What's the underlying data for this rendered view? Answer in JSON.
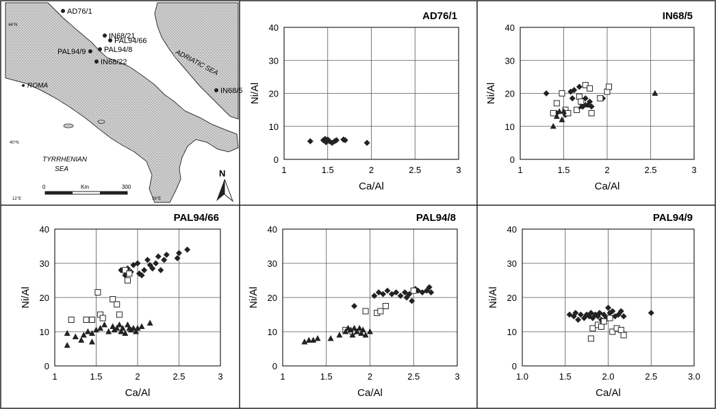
{
  "map": {
    "sites": [
      {
        "label": "AD76/1",
        "x": 92,
        "y": 16
      },
      {
        "label": "IN68/21",
        "x": 153,
        "y": 52
      },
      {
        "label": "PAL94/66",
        "x": 161,
        "y": 59
      },
      {
        "label": "PAL94/9",
        "x": 132,
        "y": 75
      },
      {
        "label": "PAL94/8",
        "x": 146,
        "y": 72
      },
      {
        "label": "IN68/22",
        "x": 141,
        "y": 90
      },
      {
        "label": "IN68/5",
        "x": 316,
        "y": 132
      }
    ],
    "texts": {
      "roma": "ROMA",
      "adriatic": "ADRIATIC SEA",
      "tyrrhenian_1": "TYRRHENIAN",
      "tyrrhenian_2": "SEA",
      "scale_zero": "0",
      "scale_unit": "Km",
      "scale_max": "300",
      "north": "N",
      "lat_top": "44°N",
      "lat_mid": "40°N",
      "lon_left": "12°E",
      "lon_right": "16°E"
    }
  },
  "chart_data": [
    {
      "id": "AD76/1",
      "title": "AD76/1",
      "type": "scatter",
      "xlabel": "Ca/Al",
      "ylabel": "Ni/Al",
      "xlim": [
        1,
        3
      ],
      "ylim": [
        0,
        40
      ],
      "xticks": [
        "1",
        "1.5",
        "2",
        "2.5",
        "3"
      ],
      "yticks": [
        "0",
        "10",
        "20",
        "30",
        "40"
      ],
      "grid": true,
      "series": [
        {
          "marker": "diamond",
          "points": [
            [
              1.3,
              5.5
            ],
            [
              1.45,
              5.8
            ],
            [
              1.47,
              6.2
            ],
            [
              1.48,
              5.2
            ],
            [
              1.5,
              6
            ],
            [
              1.52,
              5.5
            ],
            [
              1.55,
              5
            ],
            [
              1.58,
              5.5
            ],
            [
              1.6,
              5.8
            ],
            [
              1.68,
              6
            ],
            [
              1.7,
              5.8
            ],
            [
              1.95,
              5
            ]
          ]
        }
      ]
    },
    {
      "id": "IN68/5",
      "title": "IN68/5",
      "type": "scatter",
      "xlabel": "Ca/Al",
      "ylabel": "Ni/Al",
      "xlim": [
        1,
        3
      ],
      "ylim": [
        0,
        40
      ],
      "xticks": [
        "1",
        "1.5",
        "2",
        "2.5",
        "3"
      ],
      "yticks": [
        "0",
        "10",
        "20",
        "30",
        "40"
      ],
      "grid": true,
      "series": [
        {
          "marker": "diamond",
          "points": [
            [
              1.3,
              20
            ],
            [
              1.42,
              14
            ],
            [
              1.48,
              20
            ],
            [
              1.52,
              13.5
            ],
            [
              1.58,
              20.5
            ],
            [
              1.6,
              18.5
            ],
            [
              1.62,
              21
            ],
            [
              1.68,
              22
            ],
            [
              1.72,
              16
            ],
            [
              1.75,
              18.5
            ],
            [
              1.78,
              16.5
            ],
            [
              1.8,
              17.5
            ],
            [
              1.82,
              16
            ],
            [
              1.95,
              18.5
            ]
          ]
        },
        {
          "marker": "square",
          "points": [
            [
              1.38,
              14
            ],
            [
              1.42,
              17
            ],
            [
              1.48,
              20
            ],
            [
              1.52,
              15
            ],
            [
              1.55,
              14
            ],
            [
              1.65,
              15
            ],
            [
              1.68,
              19
            ],
            [
              1.7,
              17.5
            ],
            [
              1.75,
              22.5
            ],
            [
              1.8,
              21.5
            ],
            [
              1.82,
              14
            ],
            [
              1.92,
              18.5
            ],
            [
              2.0,
              20.5
            ],
            [
              2.02,
              22
            ]
          ]
        },
        {
          "marker": "triangle",
          "points": [
            [
              1.38,
              10
            ],
            [
              1.42,
              13
            ],
            [
              1.45,
              14.5
            ],
            [
              1.48,
              12
            ],
            [
              1.5,
              14.5
            ],
            [
              1.7,
              16
            ],
            [
              1.75,
              16.5
            ],
            [
              2.55,
              20
            ]
          ]
        }
      ]
    },
    {
      "id": "PAL94/66",
      "title": "PAL94/66",
      "type": "scatter",
      "xlabel": "Ca/Al",
      "ylabel": "Ni/Al",
      "xlim": [
        1,
        3
      ],
      "ylim": [
        0,
        40
      ],
      "xticks": [
        "1",
        "1.5",
        "2",
        "2.5",
        "3"
      ],
      "yticks": [
        "0",
        "10",
        "20",
        "30",
        "40"
      ],
      "grid": true,
      "series": [
        {
          "marker": "diamond",
          "points": [
            [
              1.8,
              28
            ],
            [
              1.85,
              26.5
            ],
            [
              1.88,
              28.5
            ],
            [
              1.92,
              27.5
            ],
            [
              1.95,
              29.5
            ],
            [
              2.0,
              30
            ],
            [
              2.02,
              27
            ],
            [
              2.05,
              26.5
            ],
            [
              2.08,
              28
            ],
            [
              2.12,
              31
            ],
            [
              2.15,
              29.5
            ],
            [
              2.18,
              28.5
            ],
            [
              2.22,
              30
            ],
            [
              2.25,
              32
            ],
            [
              2.28,
              28
            ],
            [
              2.32,
              31
            ],
            [
              2.35,
              32.5
            ],
            [
              2.48,
              31.5
            ],
            [
              2.5,
              33
            ],
            [
              2.6,
              34
            ]
          ]
        },
        {
          "marker": "square",
          "points": [
            [
              1.2,
              13.5
            ],
            [
              1.38,
              13.5
            ],
            [
              1.45,
              13.5
            ],
            [
              1.52,
              21.5
            ],
            [
              1.55,
              15
            ],
            [
              1.58,
              14
            ],
            [
              1.7,
              19.5
            ],
            [
              1.75,
              18
            ],
            [
              1.78,
              15
            ],
            [
              1.85,
              28
            ],
            [
              1.88,
              25
            ],
            [
              1.9,
              27
            ]
          ]
        },
        {
          "marker": "triangle",
          "points": [
            [
              1.15,
              6
            ],
            [
              1.15,
              9.5
            ],
            [
              1.25,
              8.5
            ],
            [
              1.32,
              7.5
            ],
            [
              1.35,
              9
            ],
            [
              1.4,
              10
            ],
            [
              1.45,
              7
            ],
            [
              1.45,
              9.5
            ],
            [
              1.5,
              10.5
            ],
            [
              1.55,
              11
            ],
            [
              1.6,
              12
            ],
            [
              1.65,
              10
            ],
            [
              1.7,
              11.5
            ],
            [
              1.72,
              10.5
            ],
            [
              1.75,
              11
            ],
            [
              1.78,
              12
            ],
            [
              1.8,
              10
            ],
            [
              1.82,
              11
            ],
            [
              1.85,
              9.5
            ],
            [
              1.88,
              12
            ],
            [
              1.9,
              11
            ],
            [
              1.92,
              10.5
            ],
            [
              1.95,
              11
            ],
            [
              1.98,
              10
            ],
            [
              2.0,
              11
            ],
            [
              2.05,
              11.5
            ],
            [
              2.15,
              12.5
            ]
          ]
        }
      ]
    },
    {
      "id": "PAL94/8",
      "title": "PAL94/8",
      "type": "scatter",
      "xlabel": "Ca/Al",
      "ylabel": "Ni/Al",
      "xlim": [
        1,
        3
      ],
      "ylim": [
        0,
        40
      ],
      "xticks": [
        "1",
        "1.5",
        "2",
        "2.5",
        "3"
      ],
      "yticks": [
        "0",
        "10",
        "20",
        "30",
        "40"
      ],
      "grid": true,
      "series": [
        {
          "marker": "diamond",
          "points": [
            [
              1.82,
              17.5
            ],
            [
              2.05,
              20.5
            ],
            [
              2.1,
              21.5
            ],
            [
              2.15,
              21
            ],
            [
              2.2,
              22
            ],
            [
              2.25,
              21
            ],
            [
              2.3,
              21.5
            ],
            [
              2.35,
              20.5
            ],
            [
              2.4,
              21.5
            ],
            [
              2.42,
              20
            ],
            [
              2.45,
              21
            ],
            [
              2.5,
              22
            ],
            [
              2.52,
              22.5
            ],
            [
              2.55,
              22
            ],
            [
              2.6,
              21.5
            ],
            [
              2.65,
              22
            ],
            [
              2.68,
              23
            ],
            [
              2.7,
              21.5
            ],
            [
              2.48,
              19
            ]
          ]
        },
        {
          "marker": "square",
          "points": [
            [
              1.72,
              10.5
            ],
            [
              1.8,
              10
            ],
            [
              1.95,
              16
            ],
            [
              2.08,
              15.5
            ],
            [
              2.12,
              16
            ],
            [
              2.18,
              17.5
            ],
            [
              2.5,
              22
            ]
          ]
        },
        {
          "marker": "triangle",
          "points": [
            [
              1.25,
              7
            ],
            [
              1.3,
              7.5
            ],
            [
              1.35,
              7.5
            ],
            [
              1.4,
              8
            ],
            [
              1.55,
              8
            ],
            [
              1.65,
              9
            ],
            [
              1.72,
              10
            ],
            [
              1.75,
              11
            ],
            [
              1.78,
              10.5
            ],
            [
              1.8,
              9
            ],
            [
              1.82,
              11
            ],
            [
              1.85,
              10
            ],
            [
              1.88,
              11
            ],
            [
              1.9,
              9.5
            ],
            [
              1.92,
              10.5
            ],
            [
              1.95,
              9
            ],
            [
              2.0,
              10
            ]
          ]
        }
      ]
    },
    {
      "id": "PAL94/9",
      "title": "PAL94/9",
      "type": "scatter",
      "xlabel": "Ca/Al",
      "ylabel": "Ni/Al",
      "xlim": [
        1,
        3
      ],
      "ylim": [
        0,
        40
      ],
      "xticks": [
        "1.0",
        "1.5",
        "2.0",
        "2.5",
        "3.0"
      ],
      "yticks": [
        "0",
        "10",
        "20",
        "30",
        "40"
      ],
      "grid": true,
      "series": [
        {
          "marker": "diamond",
          "points": [
            [
              1.55,
              15
            ],
            [
              1.6,
              14.5
            ],
            [
              1.62,
              15.5
            ],
            [
              1.65,
              13.5
            ],
            [
              1.68,
              15
            ],
            [
              1.72,
              14
            ],
            [
              1.75,
              15
            ],
            [
              1.78,
              14.5
            ],
            [
              1.8,
              15.5
            ],
            [
              1.82,
              14
            ],
            [
              1.85,
              15
            ],
            [
              1.88,
              14.5
            ],
            [
              1.9,
              15.5
            ],
            [
              1.92,
              13.5
            ],
            [
              1.95,
              15
            ],
            [
              1.98,
              14
            ],
            [
              2.0,
              17
            ],
            [
              2.02,
              15.5
            ],
            [
              2.05,
              16
            ],
            [
              2.08,
              14.5
            ],
            [
              2.12,
              15
            ],
            [
              2.15,
              16
            ],
            [
              2.18,
              14.5
            ],
            [
              2.5,
              15.5
            ]
          ]
        },
        {
          "marker": "square",
          "points": [
            [
              1.8,
              8
            ],
            [
              1.82,
              11
            ],
            [
              1.88,
              12
            ],
            [
              1.92,
              11.5
            ],
            [
              1.95,
              13
            ],
            [
              2.02,
              14
            ],
            [
              2.05,
              10
            ],
            [
              2.1,
              11
            ],
            [
              2.15,
              10.5
            ],
            [
              2.18,
              9
            ]
          ]
        }
      ]
    }
  ]
}
